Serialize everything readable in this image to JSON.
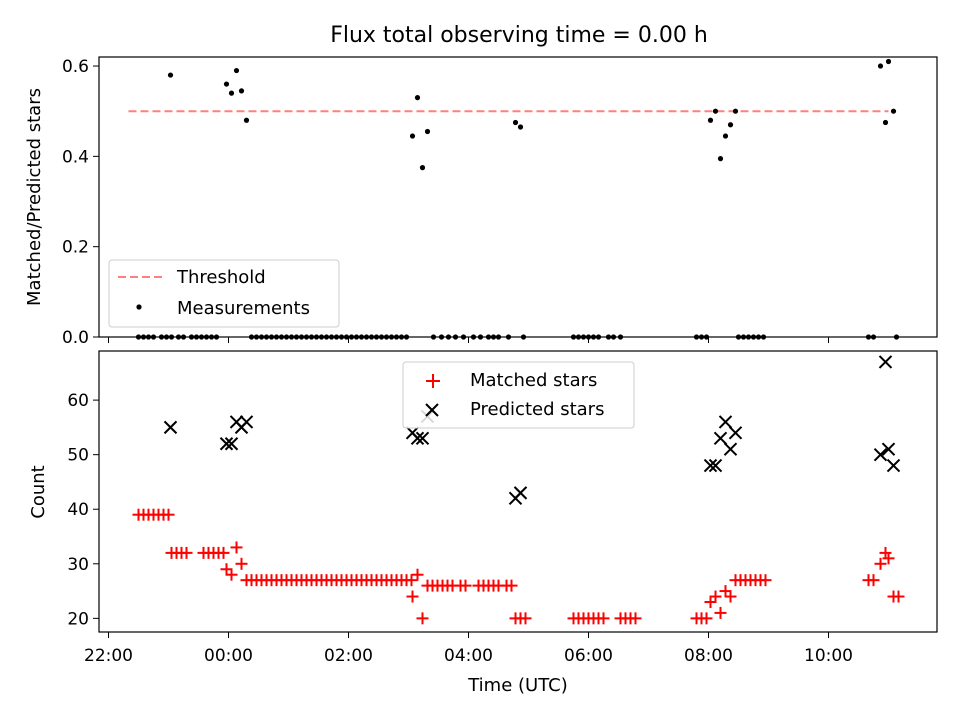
{
  "chart_data": [
    {
      "type": "scatter",
      "title": "Flux total observing time = 0.00 h",
      "xlabel": "",
      "ylabel": "Matched/Predicted stars",
      "ylim": [
        0,
        0.62
      ],
      "yticks": [
        "0.0",
        "0.2",
        "0.4",
        "0.6"
      ],
      "legend_position": "lower left",
      "threshold": {
        "name": "Threshold",
        "value": 0.5,
        "color": "#ff7f7f",
        "x_range": [
          "22:20",
          "11:00"
        ]
      },
      "series": [
        {
          "name": "Measurements",
          "color": "#000000",
          "points": [
            [
              "23:02",
              0.58
            ],
            [
              "23:58",
              0.56
            ],
            [
              "00:03",
              0.54
            ],
            [
              "00:08",
              0.59
            ],
            [
              "00:13",
              0.545
            ],
            [
              "00:18",
              0.48
            ],
            [
              "03:04",
              0.445
            ],
            [
              "03:09",
              0.53
            ],
            [
              "03:14",
              0.375
            ],
            [
              "03:19",
              0.455
            ],
            [
              "04:47",
              0.475
            ],
            [
              "04:52",
              0.465
            ],
            [
              "08:02",
              0.48
            ],
            [
              "08:07",
              0.5
            ],
            [
              "08:12",
              0.395
            ],
            [
              "08:17",
              0.445
            ],
            [
              "08:22",
              0.47
            ],
            [
              "08:27",
              0.5
            ],
            [
              "10:52",
              0.6
            ],
            [
              "10:57",
              0.475
            ],
            [
              "11:00",
              0.61
            ],
            [
              "11:05",
              0.5
            ]
          ],
          "zero_times": [
            "22:30",
            "22:35",
            "22:40",
            "22:45",
            "22:53",
            "22:58",
            "23:03",
            "23:10",
            "23:15",
            "23:23",
            "23:28",
            "23:33",
            "23:38",
            "23:43",
            "23:48",
            "00:23",
            "00:28",
            "00:33",
            "00:38",
            "00:43",
            "00:48",
            "00:53",
            "00:58",
            "01:03",
            "01:08",
            "01:13",
            "01:18",
            "01:23",
            "01:28",
            "01:33",
            "01:38",
            "01:43",
            "01:48",
            "01:53",
            "01:58",
            "02:03",
            "02:08",
            "02:13",
            "02:18",
            "02:23",
            "02:28",
            "02:33",
            "02:38",
            "02:43",
            "02:48",
            "02:53",
            "02:58",
            "03:25",
            "03:33",
            "03:40",
            "03:47",
            "03:55",
            "04:05",
            "04:12",
            "04:20",
            "04:25",
            "04:30",
            "04:40",
            "04:55",
            "05:45",
            "05:50",
            "05:55",
            "06:00",
            "06:05",
            "06:10",
            "06:20",
            "06:25",
            "06:32",
            "07:48",
            "07:53",
            "07:58",
            "08:30",
            "08:35",
            "08:40",
            "08:45",
            "08:50",
            "08:55",
            "10:40",
            "10:45",
            "11:08"
          ]
        }
      ]
    },
    {
      "type": "scatter",
      "title": "",
      "xlabel": "Time (UTC)",
      "ylabel": "Count",
      "ylim": [
        17.5,
        69
      ],
      "yticks": [
        "20",
        "30",
        "40",
        "50",
        "60"
      ],
      "xticks": [
        "22:00",
        "00:00",
        "02:00",
        "04:00",
        "06:00",
        "08:00",
        "10:00"
      ],
      "legend_position": "upper center",
      "series": [
        {
          "name": "Matched stars",
          "marker": "+",
          "color": "#ff0000",
          "points": [
            [
              "22:30",
              39
            ],
            [
              "22:35",
              39
            ],
            [
              "22:40",
              39
            ],
            [
              "22:45",
              39
            ],
            [
              "22:50",
              39
            ],
            [
              "22:55",
              39
            ],
            [
              "23:00",
              39
            ],
            [
              "23:03",
              32
            ],
            [
              "23:08",
              32
            ],
            [
              "23:13",
              32
            ],
            [
              "23:18",
              32
            ],
            [
              "23:35",
              32
            ],
            [
              "23:40",
              32
            ],
            [
              "23:45",
              32
            ],
            [
              "23:50",
              32
            ],
            [
              "23:55",
              32
            ],
            [
              "23:58",
              29
            ],
            [
              "00:03",
              28
            ],
            [
              "00:08",
              33
            ],
            [
              "00:13",
              30
            ],
            [
              "00:18",
              27
            ],
            [
              "00:23",
              27
            ],
            [
              "00:28",
              27
            ],
            [
              "00:33",
              27
            ],
            [
              "00:38",
              27
            ],
            [
              "00:43",
              27
            ],
            [
              "00:48",
              27
            ],
            [
              "00:53",
              27
            ],
            [
              "00:58",
              27
            ],
            [
              "01:03",
              27
            ],
            [
              "01:08",
              27
            ],
            [
              "01:13",
              27
            ],
            [
              "01:18",
              27
            ],
            [
              "01:23",
              27
            ],
            [
              "01:28",
              27
            ],
            [
              "01:33",
              27
            ],
            [
              "01:38",
              27
            ],
            [
              "01:43",
              27
            ],
            [
              "01:48",
              27
            ],
            [
              "01:53",
              27
            ],
            [
              "01:58",
              27
            ],
            [
              "02:03",
              27
            ],
            [
              "02:08",
              27
            ],
            [
              "02:13",
              27
            ],
            [
              "02:18",
              27
            ],
            [
              "02:23",
              27
            ],
            [
              "02:28",
              27
            ],
            [
              "02:33",
              27
            ],
            [
              "02:38",
              27
            ],
            [
              "02:43",
              27
            ],
            [
              "02:48",
              27
            ],
            [
              "02:53",
              27
            ],
            [
              "02:58",
              27
            ],
            [
              "03:03",
              27
            ],
            [
              "03:04",
              24
            ],
            [
              "03:09",
              28
            ],
            [
              "03:14",
              20
            ],
            [
              "03:19",
              26
            ],
            [
              "03:24",
              26
            ],
            [
              "03:29",
              26
            ],
            [
              "03:34",
              26
            ],
            [
              "03:39",
              26
            ],
            [
              "03:44",
              26
            ],
            [
              "03:52",
              26
            ],
            [
              "03:57",
              26
            ],
            [
              "04:10",
              26
            ],
            [
              "04:15",
              26
            ],
            [
              "04:20",
              26
            ],
            [
              "04:25",
              26
            ],
            [
              "04:30",
              26
            ],
            [
              "04:38",
              26
            ],
            [
              "04:43",
              26
            ],
            [
              "04:47",
              20
            ],
            [
              "04:52",
              20
            ],
            [
              "04:57",
              20
            ],
            [
              "05:45",
              20
            ],
            [
              "05:50",
              20
            ],
            [
              "05:55",
              20
            ],
            [
              "06:00",
              20
            ],
            [
              "06:05",
              20
            ],
            [
              "06:10",
              20
            ],
            [
              "06:15",
              20
            ],
            [
              "06:32",
              20
            ],
            [
              "06:37",
              20
            ],
            [
              "06:42",
              20
            ],
            [
              "06:47",
              20
            ],
            [
              "07:48",
              20
            ],
            [
              "07:53",
              20
            ],
            [
              "07:58",
              20
            ],
            [
              "08:02",
              23
            ],
            [
              "08:07",
              24
            ],
            [
              "08:12",
              21
            ],
            [
              "08:17",
              25
            ],
            [
              "08:22",
              24
            ],
            [
              "08:27",
              27
            ],
            [
              "08:32",
              27
            ],
            [
              "08:37",
              27
            ],
            [
              "08:42",
              27
            ],
            [
              "08:47",
              27
            ],
            [
              "08:52",
              27
            ],
            [
              "08:57",
              27
            ],
            [
              "10:40",
              27
            ],
            [
              "10:45",
              27
            ],
            [
              "10:52",
              30
            ],
            [
              "10:57",
              32
            ],
            [
              "11:00",
              31
            ],
            [
              "11:05",
              24
            ],
            [
              "11:10",
              24
            ]
          ]
        },
        {
          "name": "Predicted stars",
          "marker": "x",
          "color": "#000000",
          "points": [
            [
              "23:02",
              55
            ],
            [
              "23:58",
              52
            ],
            [
              "00:03",
              52
            ],
            [
              "00:08",
              56
            ],
            [
              "00:13",
              55
            ],
            [
              "00:18",
              56
            ],
            [
              "03:04",
              54
            ],
            [
              "03:09",
              53
            ],
            [
              "03:14",
              53
            ],
            [
              "03:19",
              57
            ],
            [
              "04:47",
              42
            ],
            [
              "04:52",
              43
            ],
            [
              "08:02",
              48
            ],
            [
              "08:07",
              48
            ],
            [
              "08:12",
              53
            ],
            [
              "08:17",
              56
            ],
            [
              "08:22",
              51
            ],
            [
              "08:27",
              54
            ],
            [
              "10:52",
              50
            ],
            [
              "10:57",
              67
            ],
            [
              "11:00",
              51
            ],
            [
              "11:05",
              48
            ]
          ]
        }
      ]
    }
  ]
}
